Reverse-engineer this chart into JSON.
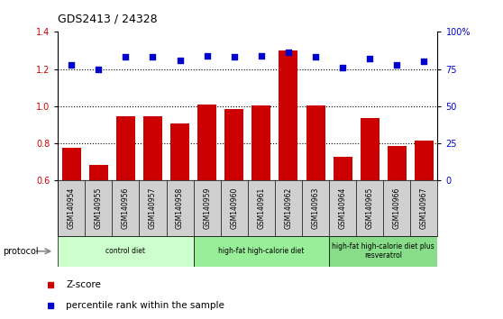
{
  "title": "GDS2413 / 24328",
  "samples": [
    "GSM140954",
    "GSM140955",
    "GSM140956",
    "GSM140957",
    "GSM140958",
    "GSM140959",
    "GSM140960",
    "GSM140961",
    "GSM140962",
    "GSM140963",
    "GSM140964",
    "GSM140965",
    "GSM140966",
    "GSM140967"
  ],
  "z_scores": [
    0.775,
    0.685,
    0.945,
    0.945,
    0.905,
    1.01,
    0.985,
    1.005,
    1.3,
    1.005,
    0.725,
    0.935,
    0.785,
    0.815
  ],
  "percentile_ranks": [
    78,
    75,
    83,
    83,
    81,
    84,
    83,
    84,
    86,
    83,
    76,
    82,
    78,
    80
  ],
  "bar_color": "#cc0000",
  "dot_color": "#0000cc",
  "ylim_left": [
    0.6,
    1.4
  ],
  "ylim_right": [
    0,
    100
  ],
  "yticks_left": [
    0.6,
    0.8,
    1.0,
    1.2,
    1.4
  ],
  "yticks_right": [
    0,
    25,
    50,
    75,
    100
  ],
  "ytick_labels_right": [
    "0",
    "25",
    "50",
    "75",
    "100%"
  ],
  "grid_values": [
    0.8,
    1.0,
    1.2
  ],
  "groups": [
    {
      "label": "control diet",
      "start": 0,
      "end": 4,
      "color": "#ccffcc"
    },
    {
      "label": "high-fat high-calorie diet",
      "start": 5,
      "end": 9,
      "color": "#99ee99"
    },
    {
      "label": "high-fat high-calorie diet plus\nresveratrol",
      "start": 10,
      "end": 13,
      "color": "#88dd88"
    }
  ],
  "protocol_label": "protocol",
  "legend_zscore": "Z-score",
  "legend_percentile": "percentile rank within the sample",
  "xtick_bg": "#d0d0d0",
  "plot_bg": "#ffffff"
}
